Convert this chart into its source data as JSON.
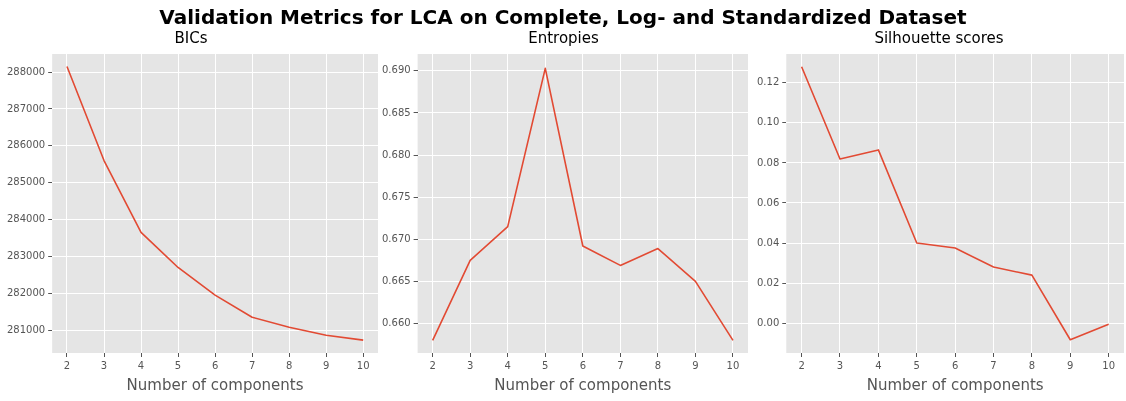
{
  "chart_data": [
    {
      "type": "other",
      "title": "Validation Metrics for LCA on Complete, Log- and Standardized Dataset"
    },
    {
      "type": "line",
      "title": "BICs",
      "xlabel": "Number of components",
      "x": [
        2,
        3,
        4,
        5,
        6,
        7,
        8,
        9,
        10
      ],
      "series": [
        {
          "color": "#e24a33",
          "values": [
            288150,
            285600,
            283650,
            282700,
            281950,
            281350,
            281080,
            280860,
            280730
          ]
        }
      ],
      "xlim": [
        1.6,
        10.4
      ],
      "xticks": [
        2,
        3,
        4,
        5,
        6,
        7,
        8,
        9,
        10
      ],
      "ylim": [
        280380,
        288490
      ],
      "yticks": [
        281000,
        282000,
        283000,
        284000,
        285000,
        286000,
        287000,
        288000
      ],
      "grid": true,
      "legend": false,
      "marker": "none",
      "line_style": "solid"
    },
    {
      "type": "line",
      "title": "Entropies",
      "xlabel": "Number of components",
      "x": [
        2,
        3,
        4,
        5,
        6,
        7,
        8,
        9,
        10
      ],
      "series": [
        {
          "color": "#e24a33",
          "values": [
            0.658,
            0.6675,
            0.6715,
            0.6903,
            0.6692,
            0.6669,
            0.6689,
            0.665,
            0.658
          ]
        }
      ],
      "xlim": [
        1.6,
        10.4
      ],
      "xticks": [
        2,
        3,
        4,
        5,
        6,
        7,
        8,
        9,
        10
      ],
      "ylim": [
        0.6565,
        0.692
      ],
      "yticks": [
        {
          "value": 0.66,
          "label": "0.660"
        },
        {
          "value": 0.665,
          "label": "0.665"
        },
        {
          "value": 0.67,
          "label": "0.670"
        },
        {
          "value": 0.675,
          "label": "0.675"
        },
        {
          "value": 0.68,
          "label": "0.680"
        },
        {
          "value": 0.685,
          "label": "0.685"
        },
        {
          "value": 0.69,
          "label": "0.690"
        }
      ],
      "grid": true,
      "legend": false,
      "marker": "none",
      "line_style": "solid"
    },
    {
      "type": "line",
      "title": "Silhouette scores",
      "xlabel": "Number of components",
      "x": [
        2,
        3,
        4,
        5,
        6,
        7,
        8,
        9,
        10
      ],
      "series": [
        {
          "color": "#e24a33",
          "values": [
            0.128,
            0.082,
            0.0865,
            0.04,
            0.0375,
            0.028,
            0.024,
            -0.0083,
            -0.0005
          ]
        }
      ],
      "xlim": [
        1.6,
        10.4
      ],
      "xticks": [
        2,
        3,
        4,
        5,
        6,
        7,
        8,
        9,
        10
      ],
      "ylim": [
        -0.0149,
        0.1344
      ],
      "yticks": [
        {
          "value": 0,
          "label": "0.00"
        },
        {
          "value": 0.02,
          "label": "0.02"
        },
        {
          "value": 0.04,
          "label": "0.04"
        },
        {
          "value": 0.06,
          "label": "0.06"
        },
        {
          "value": 0.08,
          "label": "0.08"
        },
        {
          "value": 0.1,
          "label": "0.10"
        },
        {
          "value": 0.12,
          "label": "0.12"
        }
      ],
      "grid": true,
      "legend": false,
      "marker": "none",
      "line_style": "solid"
    }
  ]
}
